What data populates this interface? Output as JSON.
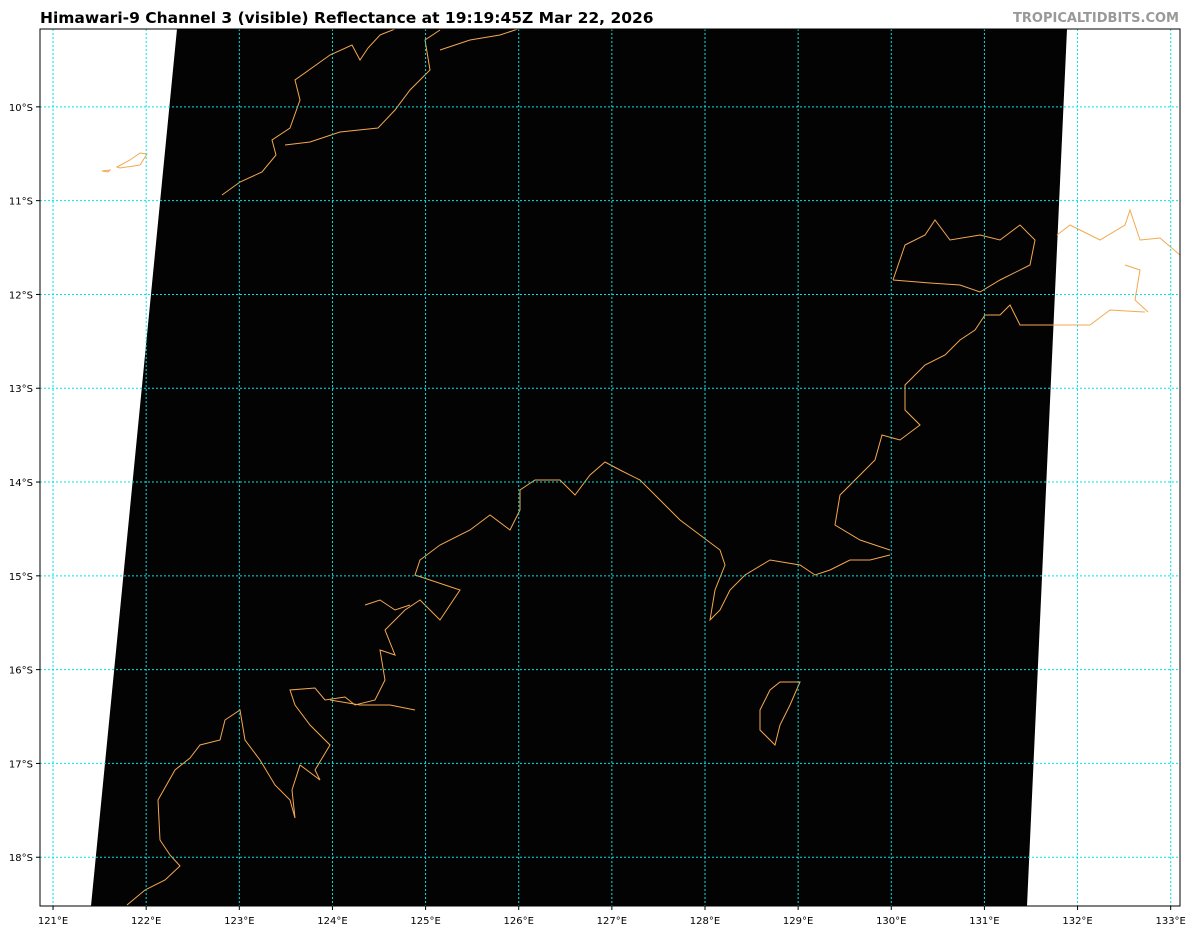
{
  "header": {
    "title": "Himawari-9 Channel 3 (visible) Reflectance at 19:19:45Z Mar 22, 2026",
    "brand": "TROPICALTIDBITS.COM"
  },
  "map": {
    "lon_range": [
      120.86,
      133.1
    ],
    "lat_range": [
      -18.52,
      -9.17
    ],
    "lon_ticks": [
      "121°E",
      "122°E",
      "123°E",
      "124°E",
      "125°E",
      "126°E",
      "127°E",
      "128°E",
      "129°E",
      "130°E",
      "131°E",
      "132°E",
      "133°E"
    ],
    "lat_ticks": [
      "10°S",
      "11°S",
      "12°S",
      "13°S",
      "14°S",
      "15°S",
      "16°S",
      "17°S",
      "18°S"
    ],
    "colors": {
      "gridline": "#00e5e5",
      "coastline": "#f4a850",
      "imagery": "#000000",
      "no_data": "#ffffff"
    }
  }
}
